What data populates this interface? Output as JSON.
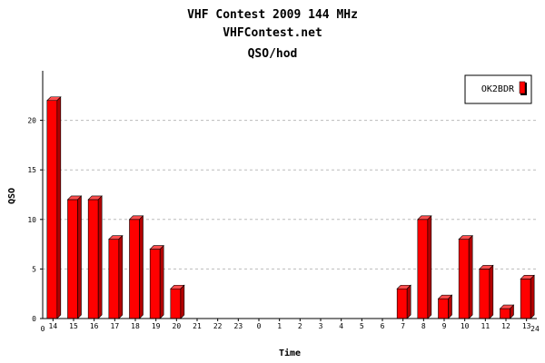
{
  "chart_data": {
    "type": "bar",
    "title": "VHF Contest 2009 144 MHz",
    "subtitle": "VHFContest.net",
    "subtitle2": "QSO/hod",
    "xlabel": "Time",
    "ylabel": "QSO",
    "categories": [
      "14",
      "15",
      "16",
      "17",
      "18",
      "19",
      "20",
      "21",
      "22",
      "23",
      "0",
      "1",
      "2",
      "3",
      "4",
      "5",
      "6",
      "7",
      "8",
      "9",
      "10",
      "11",
      "12",
      "13"
    ],
    "x_edge_labels": [
      "0",
      "24"
    ],
    "series": [
      {
        "name": "OK2BDR",
        "color": "#ff0000",
        "values": [
          22,
          12,
          12,
          8,
          10,
          7,
          3,
          0,
          0,
          0,
          0,
          0,
          0,
          0,
          0,
          0,
          0,
          3,
          10,
          2,
          8,
          5,
          1,
          4
        ]
      }
    ],
    "ylim": [
      0,
      25
    ],
    "yticks": [
      "0",
      "5",
      "10",
      "15",
      "20"
    ],
    "grid": true,
    "legend_position": "top-right"
  }
}
